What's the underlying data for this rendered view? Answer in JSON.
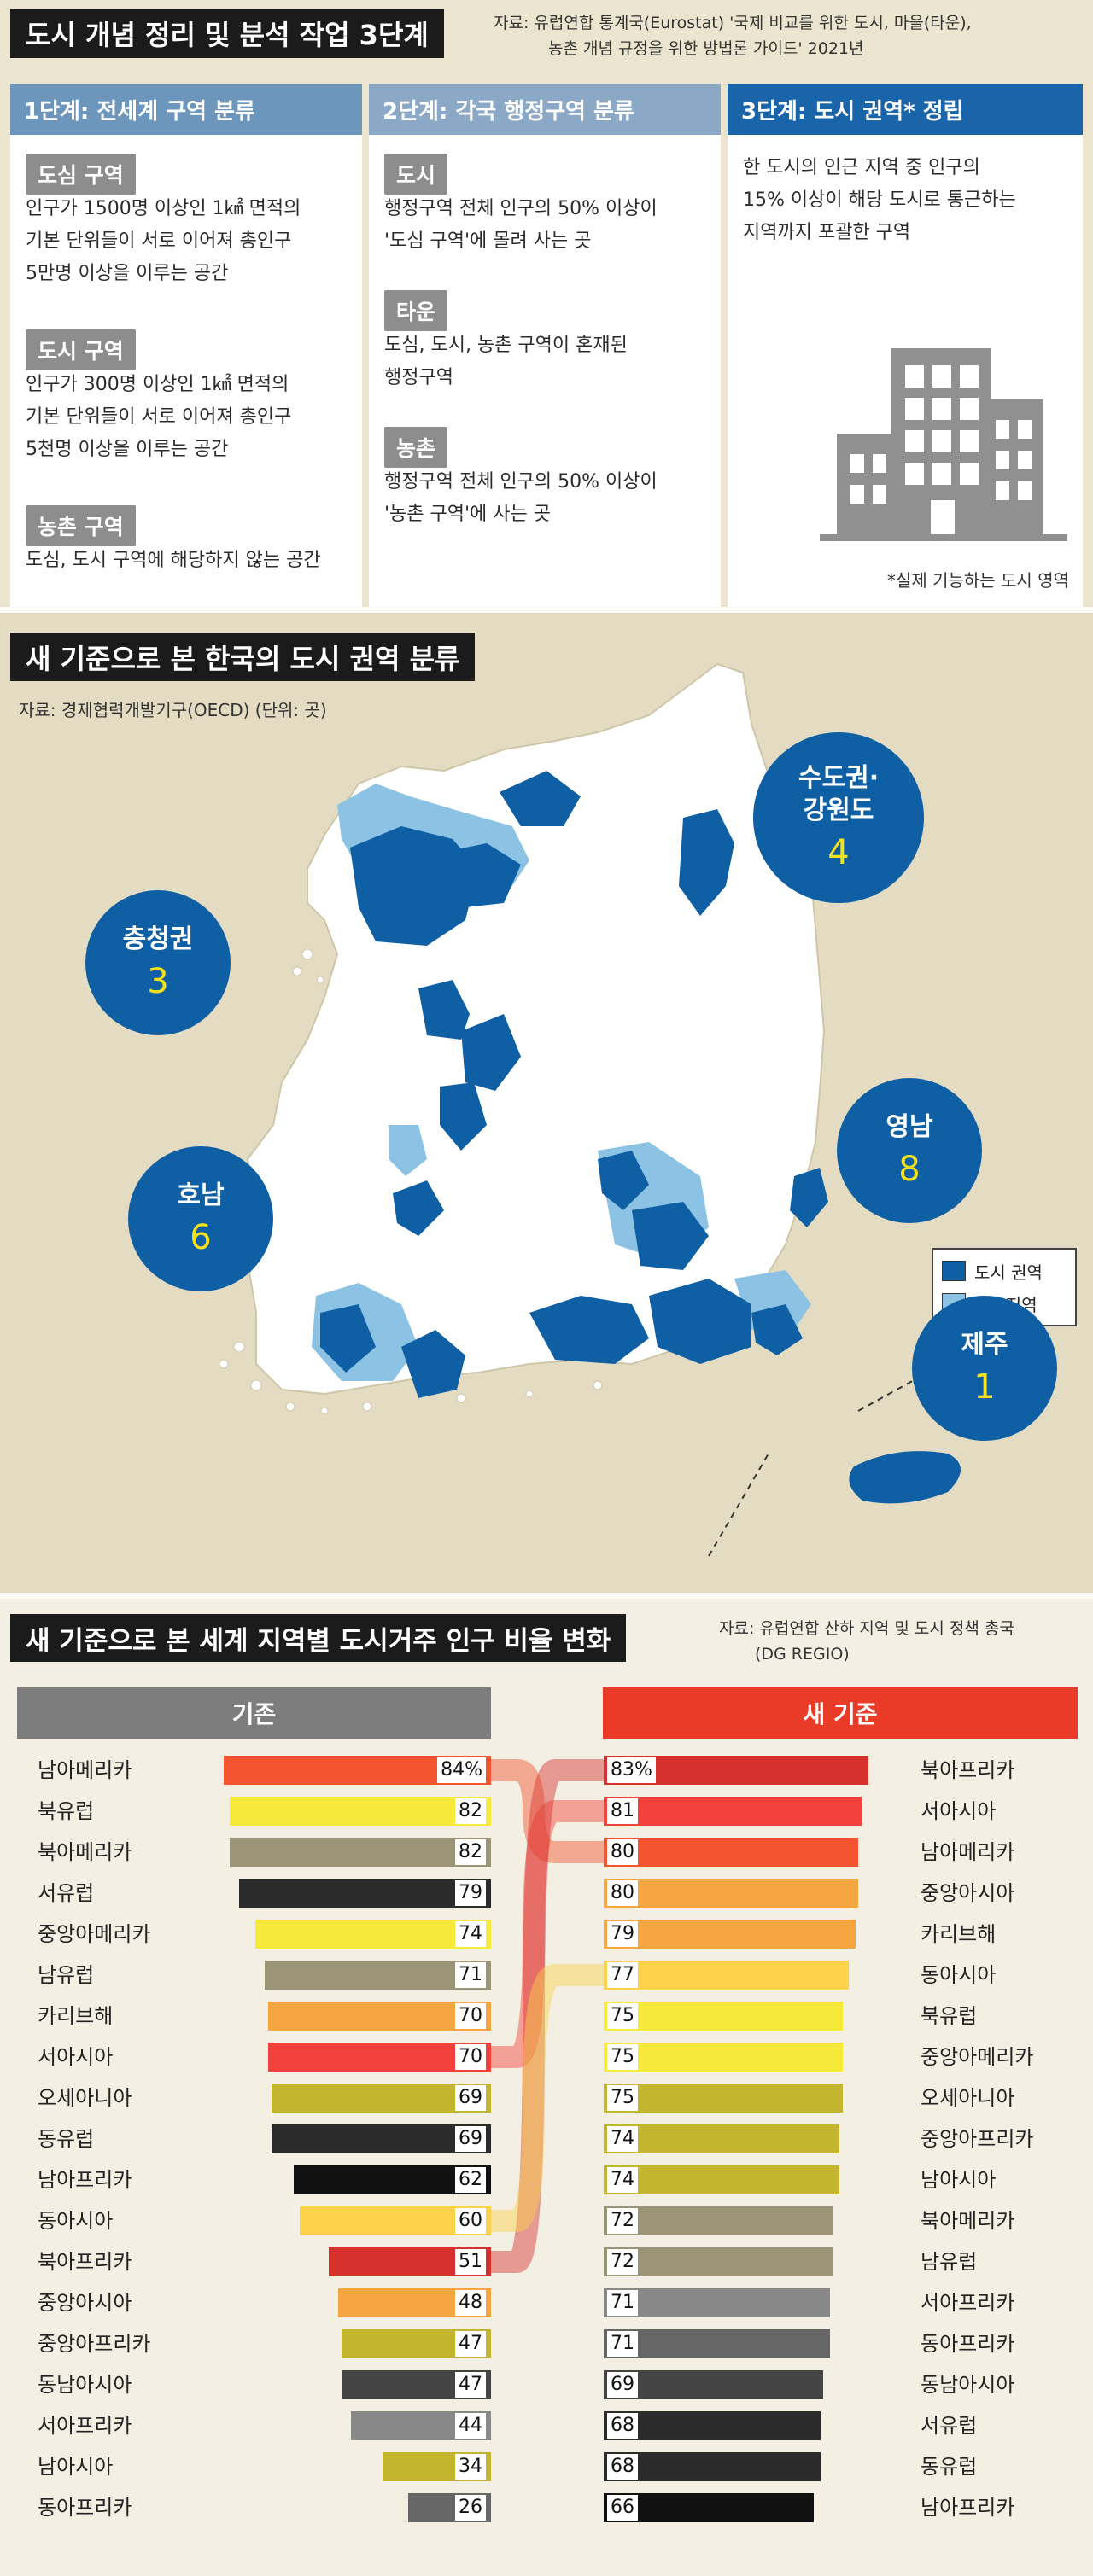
{
  "section1": {
    "title": "도시 개념 정리 및 분석 작업 3단계",
    "source_line1": "자료: 유럽연합 통계국(Eurostat) '국제 비교를 위한 도시, 마을(타운),",
    "source_line2": "농촌 개념 규정을 위한 방법론 가이드' 2021년",
    "col1": {
      "header": "1단계: 전세계 구역 분류",
      "tag1": "도심 구역",
      "text1": [
        "인구가 1500명 이상인 1㎢ 면적의",
        "기본 단위들이 서로 이어져 총인구",
        "5만명 이상을 이루는 공간"
      ],
      "tag2": "도시 구역",
      "text2": [
        "인구가 300명 이상인 1㎢ 면적의",
        "기본 단위들이 서로 이어져 총인구",
        "5천명 이상을 이루는 공간"
      ],
      "tag3": "농촌 구역",
      "text3": "도심, 도시 구역에 해당하지 않는 공간"
    },
    "col2": {
      "header": "2단계: 각국 행정구역 분류",
      "tag1": "도시",
      "text1": [
        "행정구역 전체 인구의 50% 이상이",
        "'도심 구역'에 몰려 사는 곳"
      ],
      "tag2": "타운",
      "text2": [
        "도심, 도시, 농촌 구역이 혼재된",
        "행정구역"
      ],
      "tag3": "농촌",
      "text3": [
        "행정구역 전체 인구의 50% 이상이",
        "'농촌 구역'에 사는 곳"
      ]
    },
    "col3": {
      "header": "3단계: 도시 권역* 정립",
      "text": [
        "한 도시의 인근 지역 중 인구의",
        "15% 이상이 해당 도시로 통근하는",
        "지역까지 포괄한 구역"
      ],
      "footnote": "*실제 기능하는 도시 영역"
    }
  },
  "section2": {
    "title": "새 기준으로 본 한국의 도시 권역 분류",
    "source": "자료: 경제협력개발기구(OECD) (단위: 곳)",
    "legend": {
      "urban": "도시 권역",
      "commute": "통근지역"
    },
    "colors": {
      "urban": "#0f5fa5",
      "commute": "#8cc3e4",
      "land": "#ffffff",
      "sea": "#e4dcc2"
    },
    "regions": [
      {
        "name1": "수도권·",
        "name2": "강원도",
        "count": "4"
      },
      {
        "name1": "충청권",
        "name2": "",
        "count": "3"
      },
      {
        "name1": "영남",
        "name2": "",
        "count": "8"
      },
      {
        "name1": "호남",
        "name2": "",
        "count": "6"
      },
      {
        "name1": "제주",
        "name2": "",
        "count": "1"
      }
    ]
  },
  "section3": {
    "title": "새 기준으로 본 세계 지역별 도시거주 인구 비율 변화",
    "source_line1": "자료: 유럽연합 산하 지역 및 도시 정책 총국",
    "source_line2": "(DG REGIO)",
    "left_header": "기존",
    "right_header": "새 기준",
    "chart_data": {
      "type": "bar",
      "old": [
        {
          "region": "남아메리카",
          "label": "84%",
          "value": 84,
          "color": "#f4552e"
        },
        {
          "region": "북유럽",
          "label": "82",
          "value": 82,
          "color": "#f6e93a"
        },
        {
          "region": "북아메리카",
          "label": "82",
          "value": 82,
          "color": "#9b9476"
        },
        {
          "region": "서유럽",
          "label": "79",
          "value": 79,
          "color": "#2b2b2b"
        },
        {
          "region": "중앙아메리카",
          "label": "74",
          "value": 74,
          "color": "#f6e93a"
        },
        {
          "region": "남유럽",
          "label": "71",
          "value": 71,
          "color": "#9b9476"
        },
        {
          "region": "카리브해",
          "label": "70",
          "value": 70,
          "color": "#f6a640"
        },
        {
          "region": "서아시아",
          "label": "70",
          "value": 70,
          "color": "#f4403a"
        },
        {
          "region": "오세아니아",
          "label": "69",
          "value": 69,
          "color": "#c4b52e"
        },
        {
          "region": "동유럽",
          "label": "69",
          "value": 69,
          "color": "#2b2b2b"
        },
        {
          "region": "남아프리카",
          "label": "62",
          "value": 62,
          "color": "#111111"
        },
        {
          "region": "동아시아",
          "label": "60",
          "value": 60,
          "color": "#fbd24a"
        },
        {
          "region": "북아프리카",
          "label": "51",
          "value": 51,
          "color": "#d7312e"
        },
        {
          "region": "중앙아시아",
          "label": "48",
          "value": 48,
          "color": "#f6a640"
        },
        {
          "region": "중앙아프리카",
          "label": "47",
          "value": 47,
          "color": "#c4b52e"
        },
        {
          "region": "동남아시아",
          "label": "47",
          "value": 47,
          "color": "#444444"
        },
        {
          "region": "서아프리카",
          "label": "44",
          "value": 44,
          "color": "#888888"
        },
        {
          "region": "남아시아",
          "label": "34",
          "value": 34,
          "color": "#c4b52e"
        },
        {
          "region": "동아프리카",
          "label": "26",
          "value": 26,
          "color": "#666666"
        }
      ],
      "new": [
        {
          "region": "북아프리카",
          "label": "83%",
          "value": 83,
          "color": "#d7312e"
        },
        {
          "region": "서아시아",
          "label": "81",
          "value": 81,
          "color": "#f4403a"
        },
        {
          "region": "남아메리카",
          "label": "80",
          "value": 80,
          "color": "#f4552e"
        },
        {
          "region": "중앙아시아",
          "label": "80",
          "value": 80,
          "color": "#f6a640"
        },
        {
          "region": "카리브해",
          "label": "79",
          "value": 79,
          "color": "#f6a640"
        },
        {
          "region": "동아시아",
          "label": "77",
          "value": 77,
          "color": "#fbd24a"
        },
        {
          "region": "북유럽",
          "label": "75",
          "value": 75,
          "color": "#f6e93a"
        },
        {
          "region": "중앙아메리카",
          "label": "75",
          "value": 75,
          "color": "#f6e93a"
        },
        {
          "region": "오세아니아",
          "label": "75",
          "value": 75,
          "color": "#c4b52e"
        },
        {
          "region": "중앙아프리카",
          "label": "74",
          "value": 74,
          "color": "#c4b52e"
        },
        {
          "region": "남아시아",
          "label": "74",
          "value": 74,
          "color": "#c4b52e"
        },
        {
          "region": "북아메리카",
          "label": "72",
          "value": 72,
          "color": "#9b9476"
        },
        {
          "region": "남유럽",
          "label": "72",
          "value": 72,
          "color": "#9b9476"
        },
        {
          "region": "서아프리카",
          "label": "71",
          "value": 71,
          "color": "#888888"
        },
        {
          "region": "동아프리카",
          "label": "71",
          "value": 71,
          "color": "#666666"
        },
        {
          "region": "동남아시아",
          "label": "69",
          "value": 69,
          "color": "#444444"
        },
        {
          "region": "서유럽",
          "label": "68",
          "value": 68,
          "color": "#2b2b2b"
        },
        {
          "region": "동유럽",
          "label": "68",
          "value": 68,
          "color": "#2b2b2b"
        },
        {
          "region": "남아프리카",
          "label": "66",
          "value": 66,
          "color": "#111111"
        }
      ]
    }
  }
}
